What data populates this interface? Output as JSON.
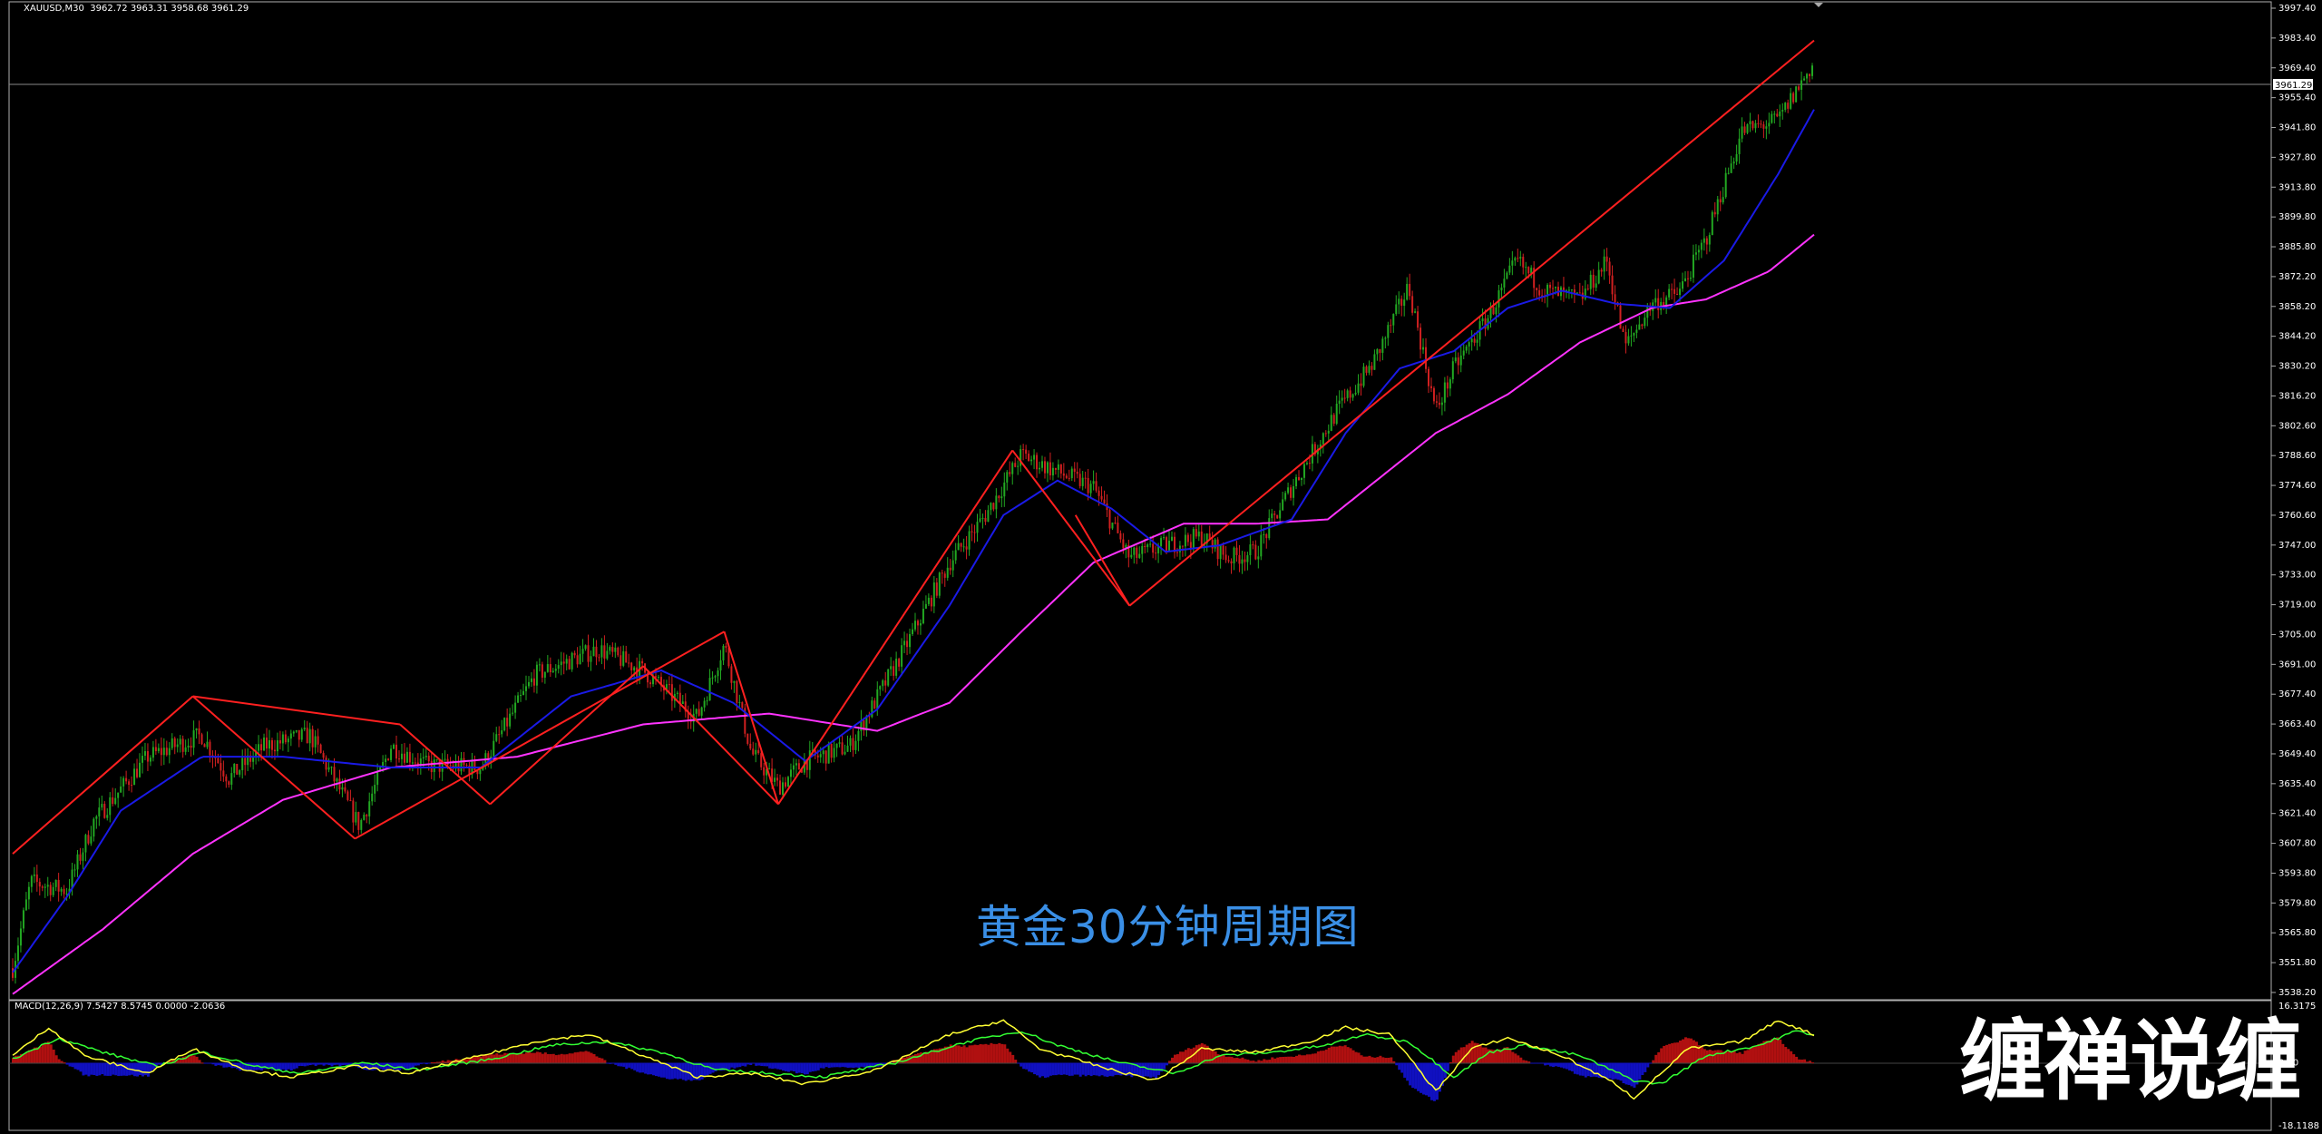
{
  "header": {
    "symbol": "XAUUSD,M30",
    "ohlc": "3962.72 3963.31 3958.68 3961.29"
  },
  "price_axis": {
    "labels": [
      "3997.40",
      "3983.40",
      "3969.40",
      "3955.40",
      "3941.80",
      "3927.80",
      "3913.80",
      "3899.80",
      "3885.80",
      "3872.20",
      "3858.20",
      "3844.20",
      "3830.20",
      "3816.20",
      "3802.60",
      "3788.60",
      "3774.60",
      "3760.60",
      "3747.00",
      "3733.00",
      "3719.00",
      "3705.00",
      "3691.00",
      "3677.40",
      "3663.40",
      "3649.40",
      "3635.40",
      "3621.40",
      "3607.80",
      "3593.80",
      "3579.80",
      "3565.80",
      "3551.80",
      "3538.20"
    ],
    "current_price": "3961.29"
  },
  "macd": {
    "header": "MACD(12,26,9) 7.5427 8.5745 0.0000 -2.0636",
    "axis_top": "16.3175",
    "axis_zero": "0.00",
    "axis_bottom": "-18.1188"
  },
  "caption": "黄金30分钟周期图",
  "watermark": "缠禅说缠",
  "colors": {
    "background": "#000000",
    "bull_candle": "#22a822",
    "bear_candle": "#d02020",
    "trend_lines": "#ff2020",
    "fast_ma": "#1a1ae6",
    "slow_ma": "#ff33ff",
    "macd_line": "#ffff33",
    "signal_line": "#33ff33",
    "hist_positive": "#b01010",
    "hist_negative": "#1010c0",
    "caption": "#3a8fe6"
  },
  "chart_data": {
    "type": "candlestick",
    "title": "",
    "xlabel": "",
    "ylabel": "",
    "ylim": [
      3538.2,
      3997.4
    ],
    "path_anchors": [
      [
        0,
        3552
      ],
      [
        20,
        3592
      ],
      [
        60,
        3588
      ],
      [
        90,
        3620
      ],
      [
        150,
        3650
      ],
      [
        210,
        3660
      ],
      [
        240,
        3640
      ],
      [
        280,
        3655
      ],
      [
        330,
        3660
      ],
      [
        385,
        3618
      ],
      [
        420,
        3655
      ],
      [
        460,
        3646
      ],
      [
        520,
        3645
      ],
      [
        580,
        3688
      ],
      [
        650,
        3700
      ],
      [
        700,
        3690
      ],
      [
        760,
        3668
      ],
      [
        790,
        3702
      ],
      [
        820,
        3652
      ],
      [
        850,
        3636
      ],
      [
        880,
        3648
      ],
      [
        930,
        3655
      ],
      [
        990,
        3700
      ],
      [
        1040,
        3740
      ],
      [
        1080,
        3762
      ],
      [
        1120,
        3790
      ],
      [
        1160,
        3782
      ],
      [
        1200,
        3775
      ],
      [
        1240,
        3742
      ],
      [
        1280,
        3748
      ],
      [
        1320,
        3752
      ],
      [
        1350,
        3742
      ],
      [
        1380,
        3745
      ],
      [
        1420,
        3775
      ],
      [
        1470,
        3810
      ],
      [
        1510,
        3832
      ],
      [
        1550,
        3868
      ],
      [
        1580,
        3810
      ],
      [
        1600,
        3830
      ],
      [
        1640,
        3855
      ],
      [
        1670,
        3880
      ],
      [
        1700,
        3866
      ],
      [
        1740,
        3862
      ],
      [
        1770,
        3880
      ],
      [
        1790,
        3840
      ],
      [
        1820,
        3860
      ],
      [
        1850,
        3865
      ],
      [
        1880,
        3890
      ],
      [
        1920,
        3940
      ],
      [
        1960,
        3945
      ],
      [
        2000,
        3972
      ]
    ],
    "fast_ma_anchors": [
      [
        0,
        3550
      ],
      [
        60,
        3585
      ],
      [
        120,
        3625
      ],
      [
        210,
        3650
      ],
      [
        300,
        3650
      ],
      [
        420,
        3645
      ],
      [
        520,
        3645
      ],
      [
        620,
        3678
      ],
      [
        720,
        3690
      ],
      [
        800,
        3675
      ],
      [
        880,
        3648
      ],
      [
        960,
        3672
      ],
      [
        1040,
        3720
      ],
      [
        1100,
        3762
      ],
      [
        1160,
        3778
      ],
      [
        1220,
        3765
      ],
      [
        1280,
        3745
      ],
      [
        1340,
        3748
      ],
      [
        1420,
        3760
      ],
      [
        1480,
        3800
      ],
      [
        1540,
        3830
      ],
      [
        1600,
        3838
      ],
      [
        1660,
        3858
      ],
      [
        1720,
        3866
      ],
      [
        1780,
        3860
      ],
      [
        1840,
        3858
      ],
      [
        1900,
        3880
      ],
      [
        1960,
        3920
      ],
      [
        2000,
        3950
      ]
    ],
    "slow_ma_anchors": [
      [
        0,
        3540
      ],
      [
        100,
        3570
      ],
      [
        200,
        3605
      ],
      [
        300,
        3630
      ],
      [
        420,
        3645
      ],
      [
        560,
        3650
      ],
      [
        700,
        3665
      ],
      [
        840,
        3670
      ],
      [
        960,
        3662
      ],
      [
        1040,
        3675
      ],
      [
        1120,
        3708
      ],
      [
        1200,
        3740
      ],
      [
        1300,
        3758
      ],
      [
        1380,
        3758
      ],
      [
        1460,
        3760
      ],
      [
        1520,
        3780
      ],
      [
        1580,
        3800
      ],
      [
        1660,
        3818
      ],
      [
        1740,
        3842
      ],
      [
        1820,
        3858
      ],
      [
        1880,
        3862
      ],
      [
        1950,
        3875
      ],
      [
        2000,
        3892
      ]
    ],
    "trend_lines": [
      [
        [
          0,
          3605
        ],
        [
          200,
          3678
        ]
      ],
      [
        [
          200,
          3678
        ],
        [
          380,
          3612
        ]
      ],
      [
        [
          380,
          3612
        ],
        [
          790,
          3708
        ]
      ],
      [
        [
          790,
          3708
        ],
        [
          850,
          3628
        ]
      ],
      [
        [
          850,
          3628
        ],
        [
          1110,
          3792
        ]
      ],
      [
        [
          1110,
          3792
        ],
        [
          1240,
          3720
        ]
      ],
      [
        [
          1240,
          3720
        ],
        [
          2000,
          3982
        ]
      ],
      [
        [
          200,
          3678
        ],
        [
          430,
          3665
        ]
      ],
      [
        [
          430,
          3665
        ],
        [
          530,
          3628
        ]
      ],
      [
        [
          530,
          3628
        ],
        [
          700,
          3692
        ]
      ],
      [
        [
          700,
          3692
        ],
        [
          850,
          3628
        ]
      ],
      [
        [
          1180,
          3762
        ],
        [
          1240,
          3720
        ]
      ]
    ],
    "macd_range": [
      -18.1188,
      16.3175
    ],
    "macd_line_anchors": [
      [
        0,
        2
      ],
      [
        40,
        10
      ],
      [
        80,
        2
      ],
      [
        150,
        -3
      ],
      [
        200,
        4
      ],
      [
        260,
        -2
      ],
      [
        310,
        -4
      ],
      [
        380,
        -1
      ],
      [
        440,
        -3
      ],
      [
        520,
        2
      ],
      [
        580,
        6
      ],
      [
        640,
        8
      ],
      [
        700,
        2
      ],
      [
        760,
        -4
      ],
      [
        820,
        -3
      ],
      [
        880,
        -6
      ],
      [
        960,
        -2
      ],
      [
        1040,
        8
      ],
      [
        1100,
        12
      ],
      [
        1140,
        4
      ],
      [
        1220,
        -2
      ],
      [
        1270,
        -5
      ],
      [
        1320,
        4
      ],
      [
        1380,
        3
      ],
      [
        1440,
        6
      ],
      [
        1480,
        10
      ],
      [
        1530,
        8
      ],
      [
        1580,
        -8
      ],
      [
        1620,
        4
      ],
      [
        1660,
        7
      ],
      [
        1720,
        2
      ],
      [
        1780,
        -6
      ],
      [
        1800,
        -10
      ],
      [
        1860,
        4
      ],
      [
        1920,
        6
      ],
      [
        1960,
        12
      ],
      [
        2000,
        8
      ]
    ],
    "signal_line_anchors": [
      [
        0,
        1
      ],
      [
        50,
        7
      ],
      [
        100,
        3
      ],
      [
        160,
        -1
      ],
      [
        210,
        3
      ],
      [
        270,
        -1
      ],
      [
        320,
        -3
      ],
      [
        390,
        0
      ],
      [
        450,
        -2
      ],
      [
        530,
        1
      ],
      [
        600,
        5
      ],
      [
        660,
        6
      ],
      [
        720,
        3
      ],
      [
        780,
        -2
      ],
      [
        840,
        -3
      ],
      [
        900,
        -4
      ],
      [
        980,
        0
      ],
      [
        1060,
        6
      ],
      [
        1120,
        9
      ],
      [
        1160,
        5
      ],
      [
        1230,
        0
      ],
      [
        1290,
        -3
      ],
      [
        1340,
        2
      ],
      [
        1400,
        3
      ],
      [
        1460,
        5
      ],
      [
        1500,
        8
      ],
      [
        1550,
        6
      ],
      [
        1600,
        -4
      ],
      [
        1640,
        3
      ],
      [
        1680,
        5
      ],
      [
        1740,
        2
      ],
      [
        1800,
        -5
      ],
      [
        1830,
        -6
      ],
      [
        1880,
        2
      ],
      [
        1940,
        5
      ],
      [
        1980,
        9
      ],
      [
        2000,
        8
      ]
    ]
  }
}
